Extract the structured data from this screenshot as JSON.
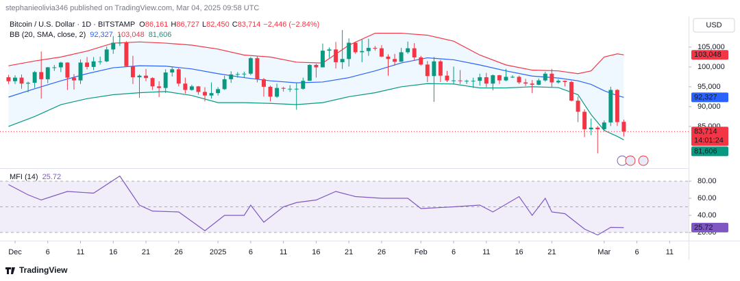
{
  "header": {
    "published": "stephanieolivia346 published on TradingView.com, Mar 04, 2025 09:58 UTC",
    "symbol": "Bitcoin / U.S. Dollar · 1D · BITSTAMP",
    "ohlc": [
      {
        "key": "O",
        "text": "86,161"
      },
      {
        "key": "H",
        "text": "86,727"
      },
      {
        "key": "L",
        "text": "82,450"
      },
      {
        "key": "C",
        "text": "83,714"
      }
    ],
    "change": "−2,446 (−2.84%)",
    "currency": "USD"
  },
  "footer": {
    "brand": "TradingView"
  },
  "chart_data": [
    {
      "type": "candlestick",
      "up_color": "#089981",
      "down_color": "#f23645",
      "x": [
        -1,
        0,
        1,
        2,
        3,
        4,
        5,
        6,
        7,
        8,
        9,
        10,
        11,
        12,
        13,
        14,
        15,
        16,
        17,
        18,
        19,
        20,
        21,
        22,
        23,
        24,
        25,
        26,
        27,
        28,
        29,
        30,
        31,
        32,
        33,
        34,
        35,
        36,
        37,
        38,
        39,
        40,
        41,
        42,
        43,
        44,
        45,
        46,
        47,
        48,
        49,
        50,
        51,
        52,
        53,
        54,
        55,
        56,
        57,
        58,
        59,
        60,
        61,
        62,
        63,
        64,
        65,
        66,
        67,
        68,
        69,
        70,
        71,
        72,
        73,
        74,
        75,
        76,
        77,
        78,
        79,
        80,
        81,
        82,
        83,
        84,
        85,
        86,
        87,
        88,
        89,
        90,
        91,
        92,
        93
      ],
      "open": [
        97400,
        96400,
        97300,
        95800,
        96000,
        98700,
        96900,
        99900,
        99900,
        101100,
        97300,
        96600,
        101100,
        100000,
        101400,
        101400,
        104400,
        106100,
        106100,
        100200,
        97400,
        97800,
        97200,
        95100,
        94700,
        98600,
        99400,
        95800,
        94200,
        95100,
        93700,
        92800,
        93400,
        94400,
        96900,
        98100,
        98200,
        98300,
        102200,
        96900,
        95000,
        92500,
        94700,
        94500,
        94500,
        94500,
        96500,
        100500,
        99900,
        104100,
        104400,
        101200,
        102000,
        106100,
        103700,
        104000,
        104800,
        104700,
        102600,
        102000,
        101300,
        103700,
        104700,
        102400,
        100600,
        97700,
        101400,
        97800,
        96600,
        96600,
        96500,
        96500,
        96500,
        97400,
        95800,
        97900,
        96600,
        97500,
        97500,
        96100,
        95800,
        95500,
        96600,
        98300,
        96100,
        96500,
        96200,
        91500,
        88700,
        84300,
        84700,
        84300,
        86000,
        94200,
        86161
      ],
      "high": [
        98000,
        97900,
        98100,
        96300,
        99000,
        103900,
        100000,
        100500,
        101300,
        101200,
        98200,
        101900,
        102500,
        102500,
        102600,
        105100,
        107800,
        108300,
        106500,
        102800,
        98100,
        99500,
        97400,
        96400,
        99400,
        99900,
        99900,
        97300,
        95500,
        95200,
        94900,
        96100,
        94900,
        97800,
        98900,
        98700,
        98800,
        102500,
        102700,
        97200,
        95300,
        95800,
        95000,
        95400,
        95900,
        97300,
        100700,
        100800,
        105900,
        104900,
        106300,
        109300,
        107200,
        106400,
        106900,
        107100,
        105300,
        105500,
        103200,
        103300,
        104800,
        106400,
        106000,
        102800,
        101500,
        102500,
        101800,
        99000,
        100100,
        99200,
        96800,
        97300,
        98300,
        98500,
        98100,
        98000,
        99500,
        97900,
        97800,
        97000,
        96700,
        97100,
        98800,
        99500,
        96900,
        96600,
        96500,
        92500,
        89300,
        87000,
        85100,
        86500,
        95000,
        94400,
        86727
      ],
      "low": [
        95700,
        95700,
        94500,
        93600,
        94700,
        92000,
        95900,
        99000,
        98700,
        94200,
        94300,
        95700,
        99400,
        99200,
        100600,
        101200,
        103300,
        105300,
        100000,
        95700,
        92200,
        96400,
        94200,
        92400,
        93400,
        97600,
        95100,
        93300,
        94000,
        93000,
        91300,
        92000,
        92800,
        94200,
        96000,
        97300,
        97300,
        97900,
        96100,
        92500,
        91300,
        92200,
        93800,
        93700,
        89200,
        94300,
        96500,
        97300,
        99900,
        102300,
        99600,
        99500,
        100100,
        103300,
        101200,
        102800,
        104100,
        102500,
        97800,
        100300,
        101300,
        103300,
        101600,
        100300,
        96200,
        91200,
        96200,
        96200,
        95700,
        95700,
        95700,
        94700,
        95300,
        94900,
        94100,
        95700,
        96400,
        97200,
        95700,
        95200,
        93400,
        95400,
        96300,
        94900,
        95800,
        95100,
        91300,
        86100,
        82300,
        82800,
        78200,
        83800,
        85100,
        85100,
        82450
      ],
      "close": [
        96400,
        97300,
        95800,
        96000,
        98700,
        96900,
        99900,
        99900,
        101100,
        97300,
        96600,
        101100,
        100000,
        101400,
        101400,
        104400,
        106100,
        106100,
        100200,
        97400,
        97800,
        97200,
        95100,
        94700,
        98600,
        99400,
        95800,
        94200,
        95100,
        93700,
        92800,
        93400,
        94400,
        96900,
        98100,
        98200,
        98300,
        102200,
        96900,
        95000,
        92500,
        94700,
        94500,
        94500,
        94500,
        96500,
        100500,
        99900,
        104100,
        104400,
        101200,
        102000,
        106100,
        103700,
        104000,
        104800,
        104700,
        102600,
        102000,
        101300,
        103700,
        104700,
        102400,
        100600,
        97700,
        101400,
        97800,
        96600,
        96600,
        96500,
        96500,
        96500,
        97400,
        95800,
        97900,
        96600,
        97500,
        97500,
        96100,
        95800,
        95500,
        96600,
        98300,
        96100,
        96500,
        96200,
        91500,
        88700,
        84300,
        84700,
        84300,
        86000,
        94200,
        86100,
        83714
      ],
      "bands": {
        "title": "BB (20, SMA, close, 2)",
        "fill": "rgba(33,150,243,0.07)",
        "x": [
          -1,
          3,
          7,
          11,
          15,
          19,
          23,
          27,
          31,
          35,
          39,
          43,
          47,
          51,
          55,
          59,
          63,
          67,
          71,
          75,
          79,
          83,
          86,
          88,
          90,
          92,
          93
        ],
        "series": [
          {
            "color": "#2962ff",
            "last_label": "92,327",
            "values": [
              92400,
              94500,
              96500,
              98300,
              99800,
              100300,
              100200,
              99500,
              98300,
              97300,
              96500,
              96000,
              96200,
              97300,
              99000,
              101000,
              102300,
              101800,
              100500,
              99000,
              97700,
              97200,
              96500,
              95600,
              94000,
              92800,
              92327
            ]
          },
          {
            "color": "#f23645",
            "last_label": "103,048",
            "values": [
              100300,
              101500,
              102500,
              104000,
              106000,
              106300,
              106000,
              105500,
              104500,
              103000,
              102500,
              101200,
              101000,
              105500,
              108500,
              108500,
              108000,
              106500,
              103000,
              100500,
              99200,
              99000,
              98300,
              99000,
              102500,
              103300,
              103048
            ]
          },
          {
            "color": "#089981",
            "last_label": "81,606",
            "values": [
              85000,
              87500,
              90500,
              92000,
              93000,
              93500,
              93800,
              92800,
              91000,
              91000,
              90800,
              90500,
              91000,
              92500,
              93500,
              95000,
              95800,
              95700,
              94700,
              94700,
              95000,
              94800,
              93000,
              88000,
              84000,
              82500,
              81606
            ]
          }
        ]
      },
      "last_price": {
        "label": "83,714",
        "countdown": "14:01:24"
      },
      "xlim": [
        -2.3,
        102.9
      ],
      "ylim": [
        74650,
        111700
      ],
      "yticks": [
        {
          "value": 85000,
          "label": "85,000"
        },
        {
          "value": 90000,
          "label": "90,000"
        },
        {
          "value": 95000,
          "label": "95,000"
        },
        {
          "value": 100000,
          "label": "100,000"
        },
        {
          "value": 105000,
          "label": "105,000"
        }
      ]
    },
    {
      "type": "line",
      "title": "MFI (14)",
      "color": "#7e57c2",
      "last_label": "25.72",
      "band_fill": "rgba(126,87,194,0.1)",
      "x": [
        -1,
        2,
        4,
        8,
        12,
        16,
        19,
        21,
        25,
        29,
        32,
        35,
        36,
        38,
        41,
        43,
        46,
        49,
        52,
        56,
        60,
        62,
        67,
        71,
        73,
        77,
        79,
        81,
        82,
        84,
        87,
        89,
        91,
        93
      ],
      "values": [
        76,
        64,
        58,
        68,
        66,
        86,
        52,
        45,
        44,
        22,
        40,
        40,
        52,
        32,
        50,
        55,
        58,
        68,
        62,
        60,
        60,
        48,
        50,
        52,
        44,
        62,
        40,
        60,
        44,
        42,
        24,
        17,
        26,
        25.72
      ],
      "levels": [
        80,
        50,
        20
      ],
      "xlim": [
        -2.3,
        102.9
      ],
      "ylim": [
        16,
        93.6
      ],
      "yticks": [
        {
          "value": 20,
          "label": "20.00"
        },
        {
          "value": 40,
          "label": "40.00"
        },
        {
          "value": 60,
          "label": "60.00"
        },
        {
          "value": 80,
          "label": "80.00"
        }
      ],
      "xticks": [
        {
          "value": 0,
          "label": "Dec"
        },
        {
          "value": 5,
          "label": "6"
        },
        {
          "value": 10,
          "label": "11"
        },
        {
          "value": 15,
          "label": "16"
        },
        {
          "value": 20,
          "label": "21"
        },
        {
          "value": 25,
          "label": "26"
        },
        {
          "value": 31,
          "label": "2025"
        },
        {
          "value": 36,
          "label": "6"
        },
        {
          "value": 41,
          "label": "11"
        },
        {
          "value": 46,
          "label": "16"
        },
        {
          "value": 51,
          "label": "21"
        },
        {
          "value": 56,
          "label": "26"
        },
        {
          "value": 62,
          "label": "Feb"
        },
        {
          "value": 67,
          "label": "6"
        },
        {
          "value": 72,
          "label": "11"
        },
        {
          "value": 77,
          "label": "16"
        },
        {
          "value": 82,
          "label": "21"
        },
        {
          "value": 90,
          "label": "Mar"
        },
        {
          "value": 95,
          "label": "6"
        },
        {
          "value": 100,
          "label": "11"
        }
      ]
    }
  ]
}
